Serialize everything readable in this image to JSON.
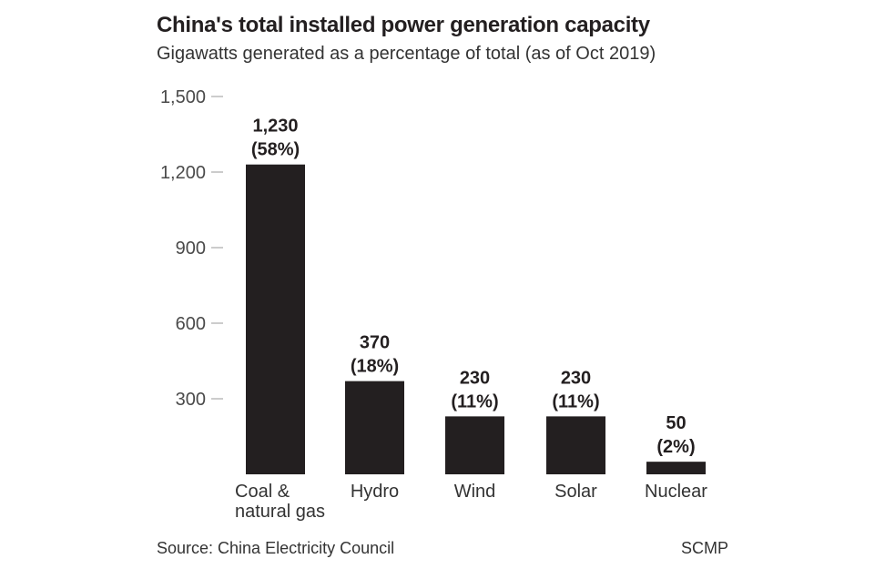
{
  "chart_data": {
    "type": "bar",
    "title": "China's total installed power generation capacity",
    "subtitle": "Gigawatts generated as a percentage of total (as of Oct 2019)",
    "categories": [
      [
        "Coal &",
        "natural gas"
      ],
      [
        "Hydro"
      ],
      [
        "Wind"
      ],
      [
        "Solar"
      ],
      [
        "Nuclear"
      ]
    ],
    "values": [
      1230,
      370,
      230,
      230,
      50
    ],
    "value_labels": [
      "1,230",
      "370",
      "230",
      "230",
      "50"
    ],
    "percent_labels": [
      "(58%)",
      "(18%)",
      "(11%)",
      "(11%)",
      "(2%)"
    ],
    "yticks": [
      300,
      600,
      900,
      1200,
      1500
    ],
    "ytick_labels": [
      "300",
      "600",
      "900",
      "1,200",
      "1,500"
    ],
    "ylim": [
      0,
      1500
    ],
    "grid": false,
    "bar_color": "#231f20",
    "source": "Source: China Electricity Council",
    "credit": "SCMP"
  }
}
